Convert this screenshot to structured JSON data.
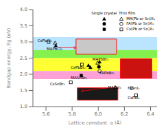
{
  "chart_data": {
    "type": "scatter",
    "xlabel": "Lattice constant, a (Å)",
    "ylabel": "Bandgap energy, Eg (eV)",
    "xlim": [
      5.5,
      6.45
    ],
    "ylim": [
      1.0,
      4.0
    ],
    "xticks": [
      5.6,
      5.8,
      {
        "value": 6,
        "label": "6.0"
      },
      6.2,
      6.4
    ],
    "yticks": [
      {
        "value": 1,
        "label": "1.0"
      },
      1.5,
      {
        "value": 2,
        "label": "2.0"
      },
      2.5,
      {
        "value": 3,
        "label": "3.0"
      },
      3.5,
      {
        "value": 4,
        "label": "4.0"
      }
    ],
    "grid": false,
    "legend": "upper right",
    "series": [
      {
        "name": "MA(Pb or Sn)X₃",
        "group": "Single crystal",
        "marker": "filled triangle",
        "color": "#000000",
        "values": [
          {
            "x": 5.675,
            "y": 2.88
          },
          {
            "x": 5.925,
            "y": 2.27
          },
          {
            "x": 5.94,
            "y": 2.21
          },
          {
            "x": 6.01,
            "y": 2.38
          }
        ]
      },
      {
        "name": "FA(Pb or Sn)X₃",
        "group": "Single crystal",
        "marker": "filled circle",
        "color": "#000000",
        "values": [
          {
            "x": 6.005,
            "y": 2.23
          }
        ]
      },
      {
        "name": "Cs(Pb or Sn)X₃",
        "group": "Single crystal",
        "marker": "filled square",
        "color": "#000000",
        "values": [
          {
            "x": 5.87,
            "y": 1.96
          }
        ]
      },
      {
        "name": "MA(Pb or Sn)X₃",
        "group": "Thin film",
        "marker": "open triangle",
        "color": "#000000",
        "values": [
          {
            "x": 5.67,
            "y": 2.97
          },
          {
            "x": 5.995,
            "y": 2.35
          },
          {
            "x": 6.13,
            "y": 1.59
          }
        ]
      },
      {
        "name": "FA(Pb or Sn)X₃",
        "group": "Thin film",
        "marker": "open circle",
        "color": "#000000",
        "values": [
          {
            "x": 6.255,
            "y": 1.57
          },
          {
            "x": 6.01,
            "y": 2.1
          }
        ]
      },
      {
        "name": "Cs(Pb or Sn)X₃",
        "group": "Thin film",
        "marker": "open square",
        "color": "#000000",
        "values": [
          {
            "x": 5.62,
            "y": 3.0
          },
          {
            "x": 5.875,
            "y": 2.3
          },
          {
            "x": 5.79,
            "y": 1.75
          },
          {
            "x": 6.29,
            "y": 1.35
          }
        ]
      }
    ],
    "annotations": [
      {
        "x": 5.535,
        "y": 3.04,
        "text": "CsPbCl₃"
      },
      {
        "x": 5.605,
        "y": 2.79,
        "text": "MAPbCl₃"
      },
      {
        "x": 5.79,
        "y": 2.21,
        "text": "CsPbBr₂"
      },
      {
        "x": 5.955,
        "y": 2.47,
        "text": "MAPbBr₃"
      },
      {
        "x": 6.01,
        "y": 2.05,
        "text": "FAPbBr₃"
      },
      {
        "x": 5.79,
        "y": 1.89,
        "text": "MASnBr₃"
      },
      {
        "x": 5.63,
        "y": 1.7,
        "text": "CsSnBr₃"
      },
      {
        "x": 6.075,
        "y": 1.59,
        "text": "MAPbI₃"
      },
      {
        "x": 6.225,
        "y": 1.57,
        "text": "FASnI₃"
      },
      {
        "x": 6.225,
        "y": 1.28,
        "text": "CsPbI₃"
      }
    ],
    "bands": [
      {
        "ymin": 2.75,
        "ymax": 3.15,
        "color": "#aaddff"
      },
      {
        "ymin": 2.5,
        "ymax": 2.75,
        "color": "#66ee22"
      },
      {
        "ymin": 2.1,
        "ymax": 2.5,
        "color": "#ffff00"
      },
      {
        "ymin": 1.85,
        "ymax": 2.1,
        "color": "#ff88cc"
      }
    ],
    "boxes": [
      {
        "x0": 5.83,
        "y0": 2.62,
        "w": 0.31,
        "h": 0.47,
        "color": "#c8c8c8",
        "edge_color": "red"
      },
      {
        "x0": 5.84,
        "y0": 1.2,
        "w": 0.31,
        "h": 0.38,
        "color": "#1a1a1a",
        "edge_color": "red"
      },
      {
        "x0": 6.17,
        "y0": 1.88,
        "w": 0.24,
        "h": 0.6,
        "color": "#cc1111",
        "edge_color": "red"
      }
    ],
    "arrows": [
      {
        "x_tail": 5.695,
        "y_tail": 2.82,
        "x_head": 5.83,
        "y_head": 2.82,
        "color": "red"
      },
      {
        "x_tail": 6.065,
        "y_tail": 1.58,
        "x_head": 5.87,
        "y_head": 1.48,
        "color": "red"
      }
    ]
  }
}
